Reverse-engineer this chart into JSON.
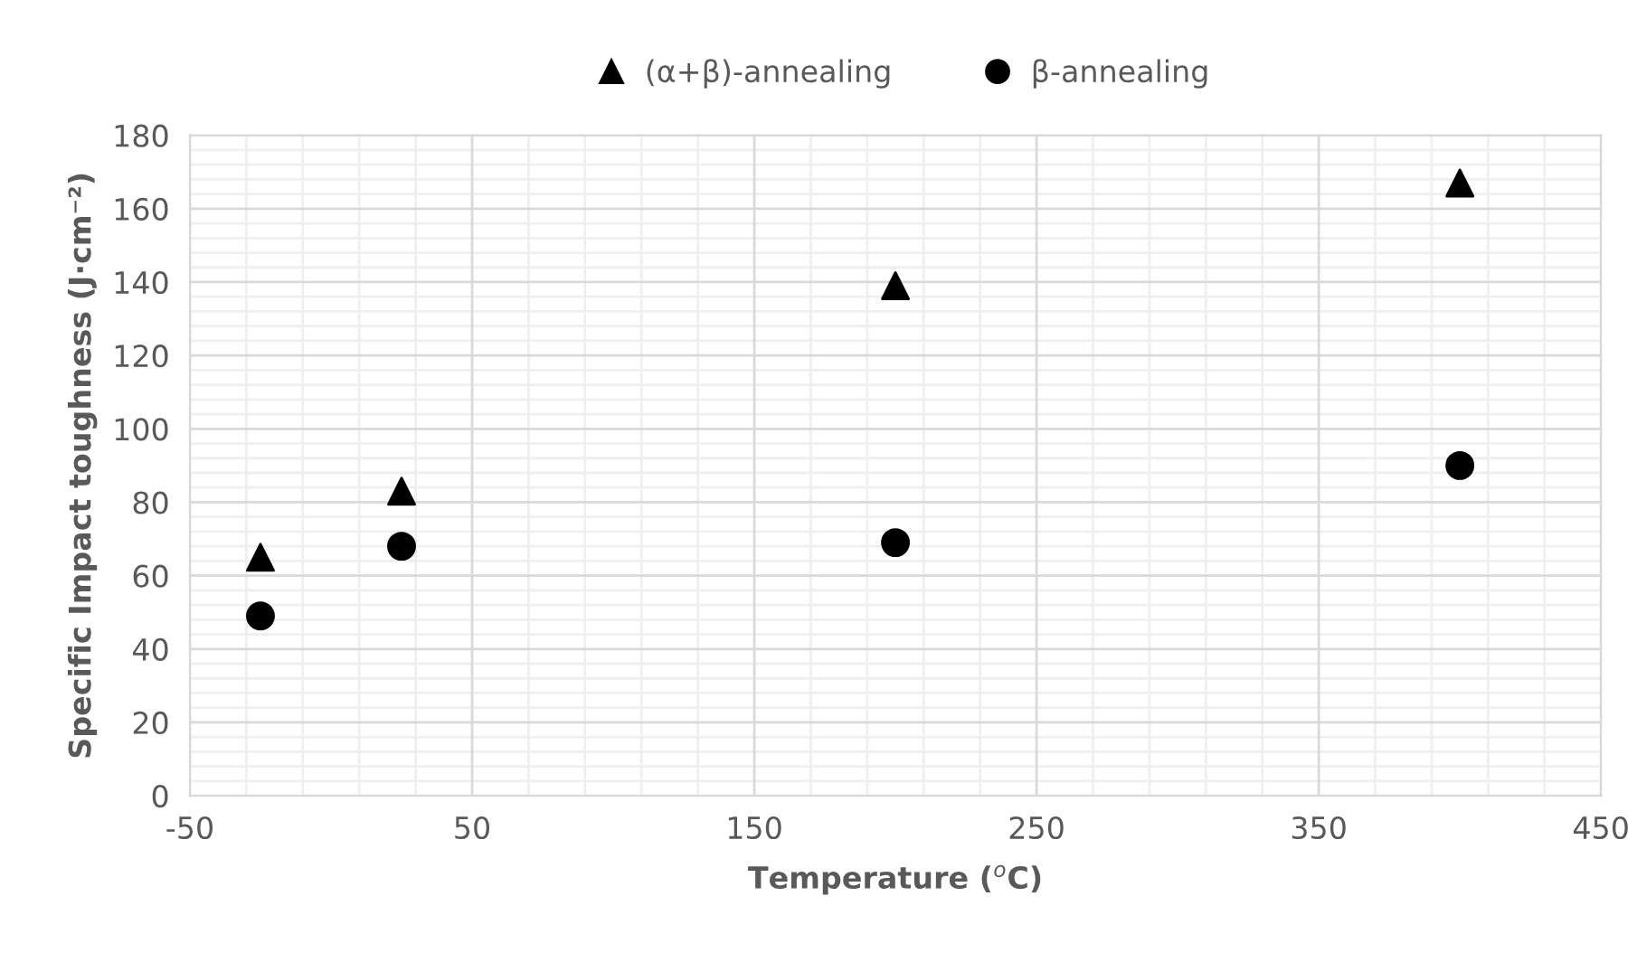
{
  "chart_data": {
    "type": "scatter",
    "xlabel": "Temperature ($^{o}$C)",
    "ylabel": "Specific Impact toughness (J·cm⁻²)",
    "legend": "top",
    "grid": true,
    "xlim": [
      -50,
      450
    ],
    "ylim": [
      0,
      180
    ],
    "xticks": [
      -50,
      {
        "value": -30,
        "label": null
      },
      {
        "value": -10,
        "label": null
      },
      {
        "value": 10,
        "label": null
      },
      {
        "value": 30,
        "label": null
      },
      50,
      {
        "value": 70,
        "label": null
      },
      {
        "value": 90,
        "label": null
      },
      {
        "value": 110,
        "label": null
      },
      {
        "value": 130,
        "label": null
      },
      150,
      {
        "value": 170,
        "label": null
      },
      {
        "value": 190,
        "label": null
      },
      {
        "value": 210,
        "label": null
      },
      {
        "value": 230,
        "label": null
      },
      250,
      {
        "value": 270,
        "label": null
      },
      {
        "value": 290,
        "label": null
      },
      {
        "value": 310,
        "label": null
      },
      {
        "value": 330,
        "label": null
      },
      350,
      {
        "value": 370,
        "label": null
      },
      {
        "value": 390,
        "label": null
      },
      {
        "value": 410,
        "label": null
      },
      {
        "value": 430,
        "label": null
      },
      450
    ],
    "yticks": [
      0,
      {
        "value": 4,
        "label": null
      },
      {
        "value": 8,
        "label": null
      },
      {
        "value": 12,
        "label": null
      },
      {
        "value": 16,
        "label": null
      },
      20,
      {
        "value": 24,
        "label": null
      },
      {
        "value": 28,
        "label": null
      },
      {
        "value": 32,
        "label": null
      },
      {
        "value": 36,
        "label": null
      },
      40,
      {
        "value": 44,
        "label": null
      },
      {
        "value": 48,
        "label": null
      },
      {
        "value": 52,
        "label": null
      },
      {
        "value": 56,
        "label": null
      },
      60,
      {
        "value": 64,
        "label": null
      },
      {
        "value": 68,
        "label": null
      },
      {
        "value": 72,
        "label": null
      },
      {
        "value": 76,
        "label": null
      },
      80,
      {
        "value": 84,
        "label": null
      },
      {
        "value": 88,
        "label": null
      },
      {
        "value": 92,
        "label": null
      },
      {
        "value": 96,
        "label": null
      },
      100,
      {
        "value": 104,
        "label": null
      },
      {
        "value": 108,
        "label": null
      },
      {
        "value": 112,
        "label": null
      },
      {
        "value": 116,
        "label": null
      },
      120,
      {
        "value": 124,
        "label": null
      },
      {
        "value": 128,
        "label": null
      },
      {
        "value": 132,
        "label": null
      },
      {
        "value": 136,
        "label": null
      },
      140,
      {
        "value": 144,
        "label": null
      },
      {
        "value": 148,
        "label": null
      },
      {
        "value": 152,
        "label": null
      },
      {
        "value": 156,
        "label": null
      },
      160,
      {
        "value": 164,
        "label": null
      },
      {
        "value": 168,
        "label": null
      },
      {
        "value": 172,
        "label": null
      },
      {
        "value": 176,
        "label": null
      },
      180
    ],
    "series": [
      {
        "name": "(α+β)-annealing",
        "color": "#000000",
        "marker": "triangle",
        "x": [
          -25,
          25,
          200,
          400
        ],
        "values": [
          65,
          83,
          139,
          167
        ]
      },
      {
        "name": "β-annealing",
        "color": "#000000",
        "marker": "circle",
        "x": [
          -25,
          25,
          200,
          400
        ],
        "values": [
          49,
          68,
          69,
          90
        ]
      }
    ]
  }
}
